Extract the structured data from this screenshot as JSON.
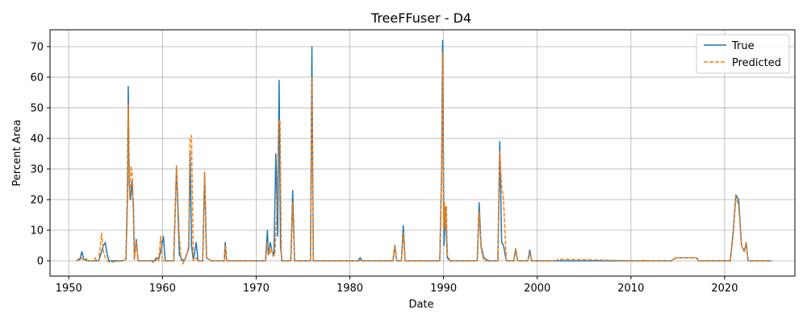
{
  "chart_data": {
    "type": "line",
    "title": "TreeFFuser - D4",
    "xlabel": "Date",
    "ylabel": "Percent Area",
    "xlim": [
      1948.0,
      2027.5
    ],
    "ylim": [
      -5,
      75.5
    ],
    "xticks": [
      1950,
      1960,
      1970,
      1980,
      1990,
      2000,
      2010,
      2020
    ],
    "yticks": [
      0,
      10,
      20,
      30,
      40,
      50,
      60,
      70
    ],
    "grid": true,
    "legend_position": "top-right",
    "colors": {
      "true": "#1f77b4",
      "predicted": "#ff7f0e"
    },
    "series": [
      {
        "name": "True",
        "style": "solid",
        "x": [
          1950.8,
          1951.2,
          1951.4,
          1951.6,
          1952.0,
          1953.2,
          1953.5,
          1953.7,
          1953.9,
          1954.1,
          1954.3,
          1955.8,
          1956.1,
          1956.25,
          1956.35,
          1956.45,
          1956.6,
          1956.75,
          1956.9,
          1957.0,
          1957.2,
          1957.4,
          1957.7,
          1959.2,
          1959.5,
          1959.6,
          1959.8,
          1960.1,
          1960.3,
          1961.2,
          1961.5,
          1961.8,
          1962.2,
          1962.4,
          1962.8,
          1962.95,
          1963.1,
          1963.3,
          1963.6,
          1963.8,
          1964.3,
          1964.5,
          1964.7,
          1965.2,
          1966.6,
          1966.7,
          1966.85,
          1971.0,
          1971.2,
          1971.3,
          1971.5,
          1971.7,
          1971.9,
          1972.1,
          1972.3,
          1972.45,
          1972.6,
          1972.75,
          1972.9,
          1973.7,
          1973.9,
          1974.1,
          1975.8,
          1975.95,
          1976.1,
          1980.9,
          1981.1,
          1981.3,
          1984.6,
          1984.8,
          1985.0,
          1985.5,
          1985.7,
          1985.9,
          1989.6,
          1989.8,
          1989.9,
          1990.05,
          1990.2,
          1990.4,
          1990.7,
          1993.6,
          1993.8,
          1994.0,
          1994.3,
          1994.8,
          1995.8,
          1996.0,
          1996.2,
          1996.4,
          1996.7,
          1997.5,
          1997.7,
          1997.9,
          1999.0,
          1999.2,
          1999.4,
          2014.3,
          2014.8,
          2017.0,
          2017.2,
          2020.6,
          2020.9,
          2021.2,
          2021.5,
          2021.8,
          2022.1,
          2022.3,
          2022.5,
          2022.8,
          2025.0
        ],
        "y": [
          0,
          0.5,
          3,
          0.5,
          0,
          0,
          3,
          5,
          6,
          2,
          0,
          0,
          0.5,
          20,
          57,
          25,
          20,
          26,
          18,
          0.5,
          7,
          0,
          0,
          0,
          1,
          0.5,
          3,
          8,
          0,
          0,
          31,
          2,
          0,
          0.5,
          4,
          36,
          5,
          0,
          6,
          0,
          0,
          29,
          1,
          0,
          0,
          6,
          0,
          0,
          10,
          2,
          6,
          3,
          2,
          35,
          8,
          59,
          5,
          0,
          0,
          0,
          23,
          0,
          0,
          70,
          0,
          0,
          1,
          0,
          0,
          5,
          0,
          0,
          11.5,
          0,
          0,
          30,
          72,
          5,
          17.5,
          1,
          0,
          0,
          19,
          5,
          1,
          0,
          0,
          39,
          6,
          5,
          0,
          0,
          4,
          0,
          0,
          3.5,
          0,
          0,
          1,
          1,
          0,
          0,
          9,
          21.5,
          20,
          5,
          3,
          6,
          0,
          0,
          0
        ]
      },
      {
        "name": "Predicted",
        "style": "dashed",
        "x": [
          1950.8,
          1951.2,
          1951.5,
          1951.8,
          1952.0,
          1952.6,
          1952.8,
          1953.0,
          1953.2,
          1953.5,
          1953.7,
          1953.9,
          1954.1,
          1954.4,
          1955.8,
          1956.1,
          1956.25,
          1956.35,
          1956.5,
          1956.65,
          1956.8,
          1957.0,
          1957.2,
          1957.4,
          1957.7,
          1958.8,
          1959.0,
          1959.3,
          1959.6,
          1959.8,
          1960.0,
          1960.3,
          1961.2,
          1961.5,
          1961.8,
          1962.0,
          1962.2,
          1962.5,
          1962.8,
          1962.95,
          1963.1,
          1963.3,
          1963.6,
          1963.8,
          1964.3,
          1964.5,
          1964.7,
          1965.2,
          1966.6,
          1966.7,
          1966.85,
          1971.0,
          1971.2,
          1971.4,
          1971.6,
          1971.8,
          1972.0,
          1972.2,
          1972.4,
          1972.55,
          1972.7,
          1972.9,
          1973.7,
          1973.9,
          1974.1,
          1975.8,
          1975.95,
          1976.1,
          1984.6,
          1984.8,
          1985.0,
          1985.5,
          1985.7,
          1985.9,
          1989.6,
          1989.8,
          1989.9,
          1990.0,
          1990.1,
          1990.2,
          1990.3,
          1990.4,
          1990.7,
          1993.6,
          1993.8,
          1994.0,
          1994.3,
          1995.8,
          1996.0,
          1996.2,
          1996.4,
          1996.7,
          1997.5,
          1997.7,
          1997.9,
          1999.0,
          1999.2,
          1999.4,
          2002.0,
          2002.2,
          2011.2,
          2011.3,
          2011.5,
          2014.3,
          2014.8,
          2017.0,
          2017.2,
          2020.6,
          2020.9,
          2021.2,
          2021.5,
          2021.8,
          2022.1,
          2022.3,
          2022.5,
          2022.8,
          2025.0
        ],
        "y": [
          0,
          1,
          0.5,
          1,
          0,
          0,
          1,
          0,
          0,
          9,
          3,
          1,
          0,
          -0.5,
          0,
          0.5,
          15,
          51,
          20,
          31,
          27,
          0.5,
          6,
          0,
          0,
          0,
          -0.5,
          1,
          0,
          8,
          0,
          0,
          0,
          31,
          8,
          0,
          -1,
          1,
          5,
          40,
          41,
          0,
          1,
          0,
          0,
          29,
          1,
          0,
          0,
          5,
          0,
          0,
          6,
          2,
          4,
          1.5,
          2,
          16,
          45,
          46,
          0,
          0,
          0,
          19,
          0,
          0,
          60,
          0,
          0,
          5,
          0,
          0,
          9,
          0,
          0,
          30,
          68,
          10,
          19,
          11,
          18,
          2,
          0,
          0,
          16,
          4,
          0,
          0,
          36,
          24,
          20,
          0,
          0,
          4,
          0,
          0,
          2.5,
          0,
          0,
          0.5,
          0,
          0.5,
          0,
          0,
          1,
          1,
          0,
          0,
          8,
          21,
          18,
          5,
          3,
          6,
          0,
          0,
          0
        ]
      }
    ]
  }
}
